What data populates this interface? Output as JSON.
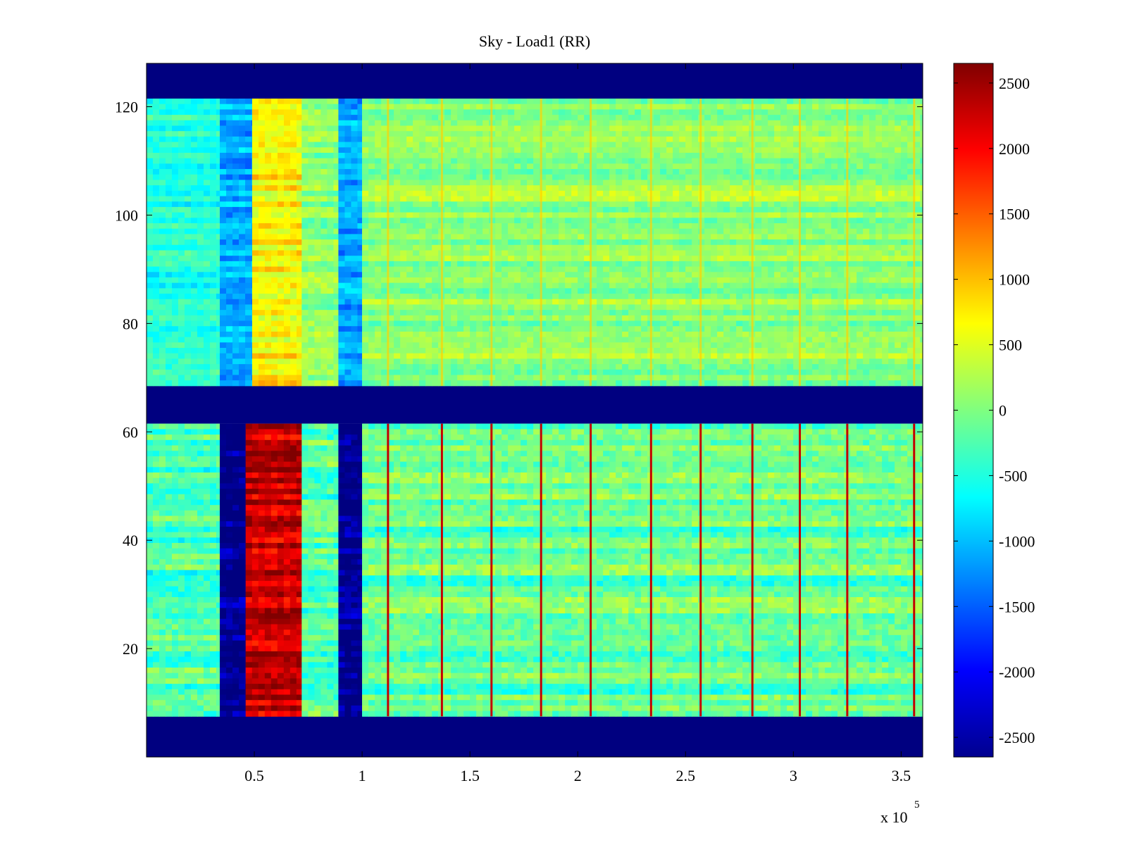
{
  "chart_data": {
    "type": "heatmap",
    "title": "Sky - Load1 (RR)",
    "xlabel": "",
    "ylabel": "",
    "colormap": "jet",
    "x_multiplier_label": "x 10",
    "x_multiplier_exponent": "5",
    "xlim": [
      0,
      3.6
    ],
    "ylim": [
      0,
      128
    ],
    "xticks": [
      0.5,
      1,
      1.5,
      2,
      2.5,
      3,
      3.5
    ],
    "xtick_labels": [
      "0.5",
      "1",
      "1.5",
      "2",
      "2.5",
      "3",
      "3.5"
    ],
    "yticks": [
      20,
      40,
      60,
      80,
      100,
      120
    ],
    "ytick_labels": [
      "20",
      "40",
      "60",
      "80",
      "100",
      "120"
    ],
    "clim": [
      -2650,
      2650
    ],
    "colorbar_ticks": [
      2500,
      2000,
      1500,
      1000,
      500,
      0,
      -500,
      -1000,
      -1500,
      -2000,
      -2500
    ],
    "colorbar_tick_labels": [
      "2500",
      "2000",
      "1500",
      "1000",
      "500",
      "0",
      "-500",
      "-1000",
      "-1500",
      "-2000",
      "-2500"
    ],
    "bands": [
      {
        "y": [
          0,
          7.5
        ],
        "value": -2650
      },
      {
        "y": [
          61.5,
          68.5
        ],
        "value": -2650
      },
      {
        "y": [
          121.5,
          128
        ],
        "value": -2650
      }
    ],
    "lower_block": {
      "y": [
        7.5,
        61.5
      ],
      "columns": [
        {
          "x": [
            0.0,
            0.34
          ],
          "value": -300
        },
        {
          "x": [
            0.34,
            0.46
          ],
          "value": -2650
        },
        {
          "x": [
            0.46,
            0.72
          ],
          "value": 2300
        },
        {
          "x": [
            0.72,
            0.89
          ],
          "value": -200
        },
        {
          "x": [
            0.89,
            1.0
          ],
          "value": -2650
        },
        {
          "x": [
            1.0,
            3.6
          ],
          "value": -150
        }
      ]
    },
    "upper_block": {
      "y": [
        68.5,
        121.5
      ],
      "columns": [
        {
          "x": [
            0.0,
            0.34
          ],
          "value": -500
        },
        {
          "x": [
            0.34,
            0.49
          ],
          "value": -1100
        },
        {
          "x": [
            0.49,
            0.72
          ],
          "value": 700
        },
        {
          "x": [
            0.72,
            0.89
          ],
          "value": 50
        },
        {
          "x": [
            0.89,
            1.0
          ],
          "value": -1100
        },
        {
          "x": [
            1.0,
            3.6
          ],
          "value": 100
        }
      ]
    },
    "spike_columns_x": [
      1.12,
      1.37,
      1.6,
      1.83,
      2.06,
      2.34,
      2.57,
      2.81,
      3.03,
      3.25,
      3.56
    ]
  }
}
